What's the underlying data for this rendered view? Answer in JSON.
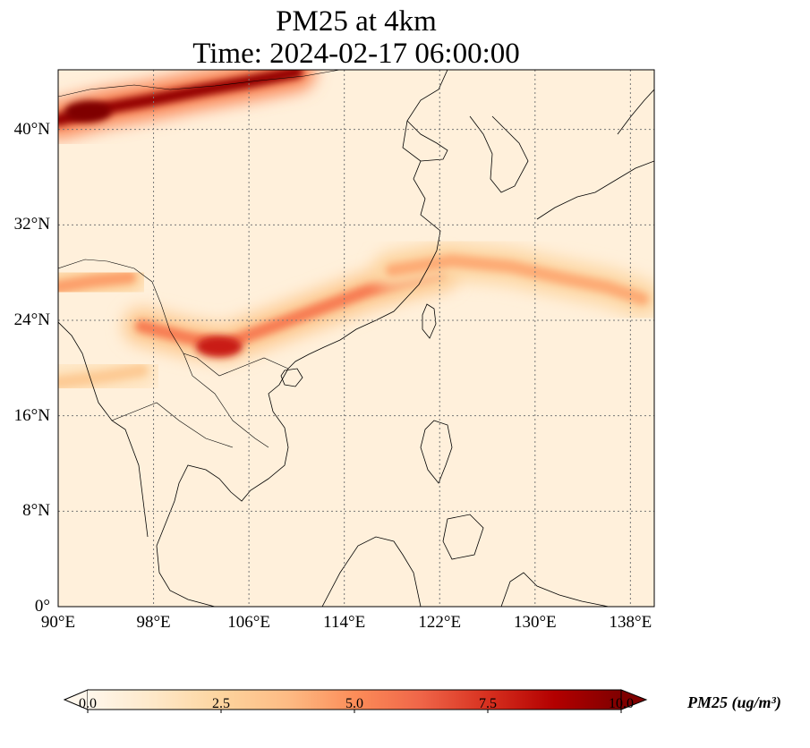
{
  "title_line1": "PM25 at 4km",
  "title_line2": "Time: 2024-02-17 06:00:00",
  "map": {
    "extent": {
      "lon_min": 90,
      "lon_max": 140,
      "lat_min": 0,
      "lat_max": 45
    },
    "gridlines": true,
    "lat_ticks": [
      {
        "value": 0,
        "label": "0°"
      },
      {
        "value": 8,
        "label": "8°N"
      },
      {
        "value": 16,
        "label": "16°N"
      },
      {
        "value": 24,
        "label": "24°N"
      },
      {
        "value": 32,
        "label": "32°N"
      },
      {
        "value": 40,
        "label": "40°N"
      }
    ],
    "lon_ticks": [
      {
        "value": 90,
        "label": "90°E"
      },
      {
        "value": 98,
        "label": "98°E"
      },
      {
        "value": 106,
        "label": "106°E"
      },
      {
        "value": 114,
        "label": "114°E"
      },
      {
        "value": 122,
        "label": "122°E"
      },
      {
        "value": 130,
        "label": "130°E"
      },
      {
        "value": 138,
        "label": "138°E"
      }
    ],
    "colormap": "OrRd",
    "background_value": 0.6,
    "plumes": [
      {
        "name": "northern-band",
        "points": [
          [
            90,
            40.8
          ],
          [
            94,
            41.8
          ],
          [
            98,
            42.5
          ],
          [
            102,
            43.3
          ],
          [
            106,
            44.0
          ],
          [
            110,
            44.8
          ]
        ],
        "value": 9.5
      },
      {
        "name": "southern-china-band",
        "points": [
          [
            97,
            23.5
          ],
          [
            101,
            22.5
          ],
          [
            104,
            22.0
          ],
          [
            108,
            23.5
          ],
          [
            112,
            25.0
          ],
          [
            116,
            26.5
          ],
          [
            119,
            27.3
          ],
          [
            122,
            28.0
          ]
        ],
        "value": 5.5
      },
      {
        "name": "ocean-band",
        "points": [
          [
            118,
            28.2
          ],
          [
            123,
            29.0
          ],
          [
            128,
            28.5
          ],
          [
            132,
            27.6
          ],
          [
            136,
            26.8
          ],
          [
            139,
            25.8
          ]
        ],
        "value": 4.2
      },
      {
        "name": "western-band",
        "points": [
          [
            90,
            26.8
          ],
          [
            93,
            27.3
          ],
          [
            96,
            27.6
          ]
        ],
        "value": 4.5
      },
      {
        "name": "indochina-band",
        "points": [
          [
            90,
            18.8
          ],
          [
            94,
            19.3
          ],
          [
            97,
            19.8
          ]
        ],
        "value": 3.0
      }
    ],
    "hotspots": [
      {
        "name": "yunnan-hotspot",
        "lon": 103.5,
        "lat": 21.8,
        "value": 8.0
      },
      {
        "name": "mongolia-core",
        "lon": 92.5,
        "lat": 41.5,
        "value": 10.0
      }
    ]
  },
  "colorbar": {
    "min": 0.0,
    "max": 10.0,
    "extend": "both",
    "ticks": [
      {
        "value": 0.0,
        "label": "0.0"
      },
      {
        "value": 2.5,
        "label": "2.5"
      },
      {
        "value": 5.0,
        "label": "5.0"
      },
      {
        "value": 7.5,
        "label": "7.5"
      },
      {
        "value": 10.0,
        "label": "10.0"
      }
    ],
    "label": "PM25 (ug/m³)"
  },
  "colors": {
    "low": "#fff7ec",
    "mid_low": "#fdd49e",
    "mid": "#fc8d59",
    "mid_high": "#d7301f",
    "high": "#7f0000",
    "gridline": "#777777",
    "coastline": "#000000"
  }
}
